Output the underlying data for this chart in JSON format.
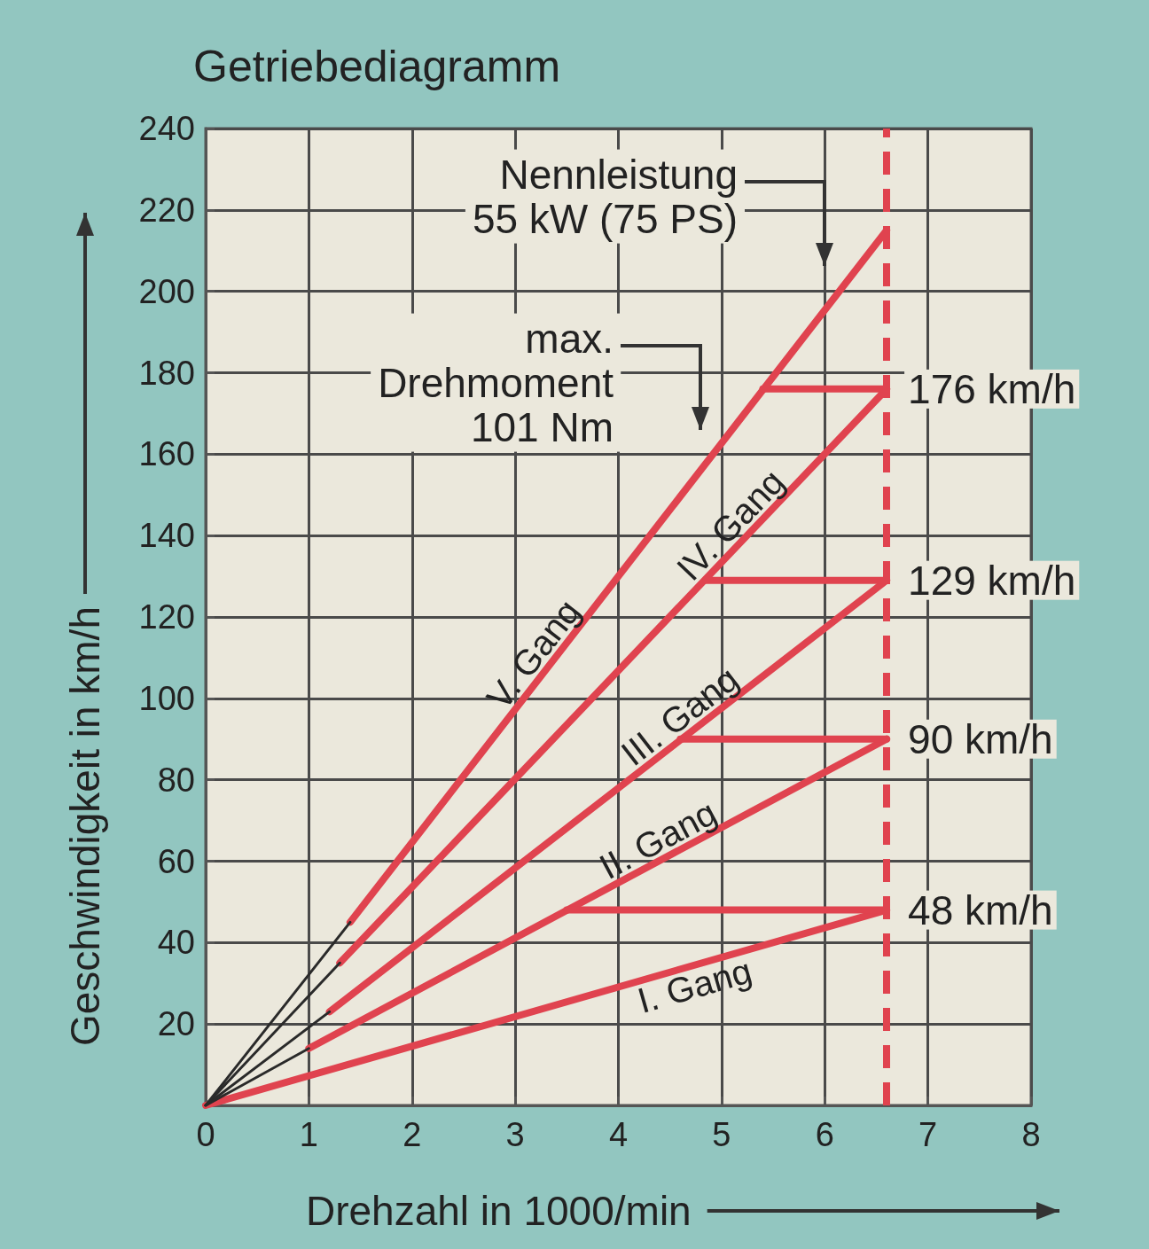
{
  "chart_data": {
    "type": "line",
    "title": "Getriebediagramm",
    "xlabel": "Drehzahl in 1000/min",
    "ylabel": "Geschwindigkeit in km/h",
    "xlim": [
      0,
      8
    ],
    "xticks": [
      0,
      1,
      2,
      3,
      4,
      5,
      6,
      7,
      8
    ],
    "ylim": [
      0,
      240
    ],
    "yticks": [
      {
        "value": 0,
        "label": null
      },
      20,
      40,
      60,
      80,
      100,
      120,
      140,
      160,
      180,
      200,
      220,
      240
    ],
    "grid": true,
    "series": [
      {
        "name": "I. Gang",
        "color": "#e0434f",
        "x": [
          0,
          6.6
        ],
        "values": [
          0,
          48
        ],
        "value_labels": [
          null,
          "48 km/h"
        ]
      },
      {
        "name": "II. Gang",
        "color": "#e0434f",
        "x": [
          1.0,
          6.6
        ],
        "values": [
          14,
          90
        ],
        "value_labels": [
          null,
          "90 km/h"
        ]
      },
      {
        "name": "III. Gang",
        "color": "#e0434f",
        "x": [
          1.2,
          6.6
        ],
        "values": [
          23,
          129
        ],
        "value_labels": [
          null,
          "129 km/h"
        ]
      },
      {
        "name": "IV. Gang",
        "color": "#e0434f",
        "x": [
          1.3,
          6.6
        ],
        "values": [
          35,
          176
        ],
        "value_labels": [
          null,
          "176 km/h"
        ]
      },
      {
        "name": "V. Gang",
        "color": "#e0434f",
        "x": [
          1.4,
          6.6
        ],
        "values": [
          45,
          215
        ]
      },
      {
        "color": "#2a2a2a",
        "x": [
          0,
          1.0
        ],
        "values": [
          0,
          14
        ]
      },
      {
        "color": "#2a2a2a",
        "x": [
          0,
          1.2
        ],
        "values": [
          0,
          23
        ]
      },
      {
        "color": "#2a2a2a",
        "x": [
          0,
          1.3
        ],
        "values": [
          0,
          35
        ]
      },
      {
        "color": "#2a2a2a",
        "x": [
          0,
          1.4
        ],
        "values": [
          0,
          45
        ]
      },
      {
        "color": "#e0434f",
        "x": [
          6.6,
          3.5
        ],
        "values": [
          48,
          48
        ]
      },
      {
        "color": "#e0434f",
        "x": [
          6.6,
          4.6
        ],
        "values": [
          90,
          90
        ]
      },
      {
        "color": "#e0434f",
        "x": [
          6.6,
          4.85
        ],
        "values": [
          129,
          129
        ]
      },
      {
        "color": "#e0434f",
        "x": [
          6.6,
          5.4
        ],
        "values": [
          176,
          176
        ]
      }
    ],
    "ref_lines": [
      {
        "axis": "x",
        "value": 6.6,
        "color": "#e0434f",
        "line_style": "dashed"
      }
    ],
    "annotations": [
      "Nennleistung\n55 kW (75 PS)",
      "max.\nDrehmoment\n101 Nm"
    ]
  }
}
